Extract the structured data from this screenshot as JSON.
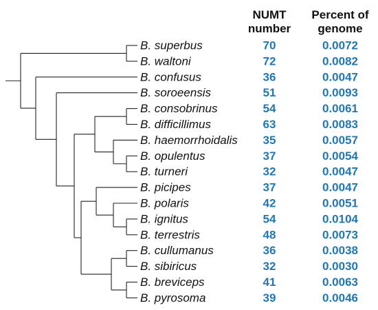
{
  "headers": {
    "numt_line1": "NUMT",
    "numt_line2": "number",
    "percent_line1": "Percent of",
    "percent_line2": "genome"
  },
  "colors": {
    "value_color": "#1f77b4",
    "line_color": "#222222",
    "text_color": "#111111"
  },
  "taxa": [
    {
      "name": "B. superbus",
      "numt": "70",
      "percent": "0.0072"
    },
    {
      "name": "B. waltoni",
      "numt": "72",
      "percent": "0.0082"
    },
    {
      "name": "B. confusus",
      "numt": "36",
      "percent": "0.0047"
    },
    {
      "name": "B. soroeensis",
      "numt": "51",
      "percent": "0.0093"
    },
    {
      "name": "B. consobrinus",
      "numt": "54",
      "percent": "0.0061"
    },
    {
      "name": "B. difficillimus",
      "numt": "63",
      "percent": "0.0083"
    },
    {
      "name": "B. haemorrhoidalis",
      "numt": "35",
      "percent": "0.0057"
    },
    {
      "name": "B. opulentus",
      "numt": "37",
      "percent": "0.0054"
    },
    {
      "name": "B. turneri",
      "numt": "32",
      "percent": "0.0047"
    },
    {
      "name": "B. picipes",
      "numt": "37",
      "percent": "0.0047"
    },
    {
      "name": "B. polaris",
      "numt": "42",
      "percent": "0.0051"
    },
    {
      "name": "B. ignitus",
      "numt": "54",
      "percent": "0.0104"
    },
    {
      "name": "B. terrestris",
      "numt": "48",
      "percent": "0.0073"
    },
    {
      "name": "B. cullumanus",
      "numt": "36",
      "percent": "0.0038"
    },
    {
      "name": "B. sibiricus",
      "numt": "32",
      "percent": "0.0030"
    },
    {
      "name": "B. breviceps",
      "numt": "41",
      "percent": "0.0063"
    },
    {
      "name": "B. pyrosoma",
      "numt": "39",
      "percent": "0.0046"
    }
  ]
}
